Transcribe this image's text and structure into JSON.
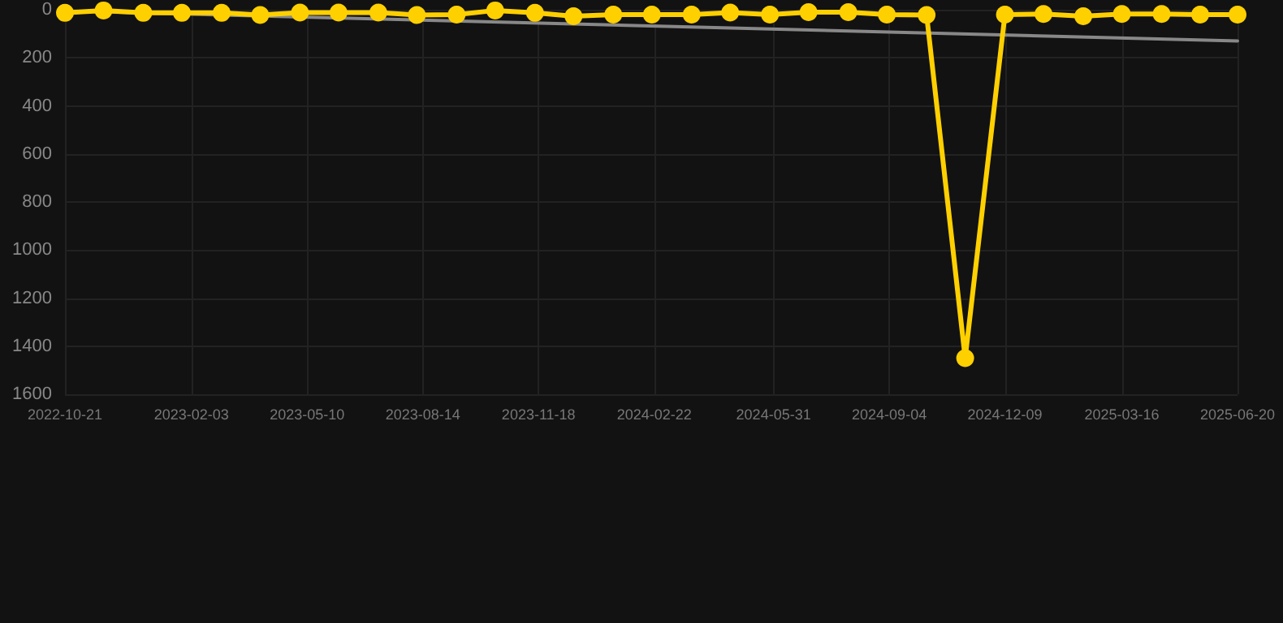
{
  "chart_data": {
    "type": "line",
    "x": [
      "2022-10-21",
      "2022-11-22",
      "2022-12-25",
      "2023-01-26",
      "2023-02-28",
      "2023-04-01",
      "2023-05-04",
      "2023-06-05",
      "2023-07-08",
      "2023-08-09",
      "2023-09-11",
      "2023-10-13",
      "2023-11-15",
      "2023-12-17",
      "2024-01-19",
      "2024-02-20",
      "2024-03-24",
      "2024-04-25",
      "2024-05-28",
      "2024-06-29",
      "2024-08-01",
      "2024-09-02",
      "2024-10-05",
      "2024-11-06",
      "2024-12-09",
      "2025-01-10",
      "2025-02-12",
      "2025-03-16",
      "2025-04-18",
      "2025-05-20",
      "2025-06-20"
    ],
    "series": [
      {
        "color": "#ffd000",
        "marker": "circle",
        "values": [
          13,
          3,
          13,
          13,
          13,
          22,
          12,
          12,
          12,
          22,
          20,
          3,
          13,
          27,
          20,
          20,
          20,
          12,
          20,
          10,
          10,
          20,
          22,
          1450,
          20,
          18,
          27,
          18,
          18,
          20,
          20
        ]
      },
      {
        "type": "line",
        "color": "#888888",
        "marker": "none",
        "x": [
          "2022-10-21",
          "2025-06-20"
        ],
        "values": [
          5,
          130
        ]
      }
    ],
    "xlim": [
      "2022-10-21",
      "2025-06-20"
    ],
    "xticks": [
      "2022-10-21",
      "2023-02-03",
      "2023-05-10",
      "2023-08-14",
      "2023-11-18",
      "2024-02-22",
      "2024-05-31",
      "2024-09-04",
      "2024-12-09",
      "2025-03-16",
      "2025-06-20"
    ],
    "ylim": [
      1600,
      0
    ],
    "yticks": [
      0,
      200,
      400,
      600,
      800,
      1000,
      1200,
      1400,
      1600
    ],
    "grid": true
  }
}
